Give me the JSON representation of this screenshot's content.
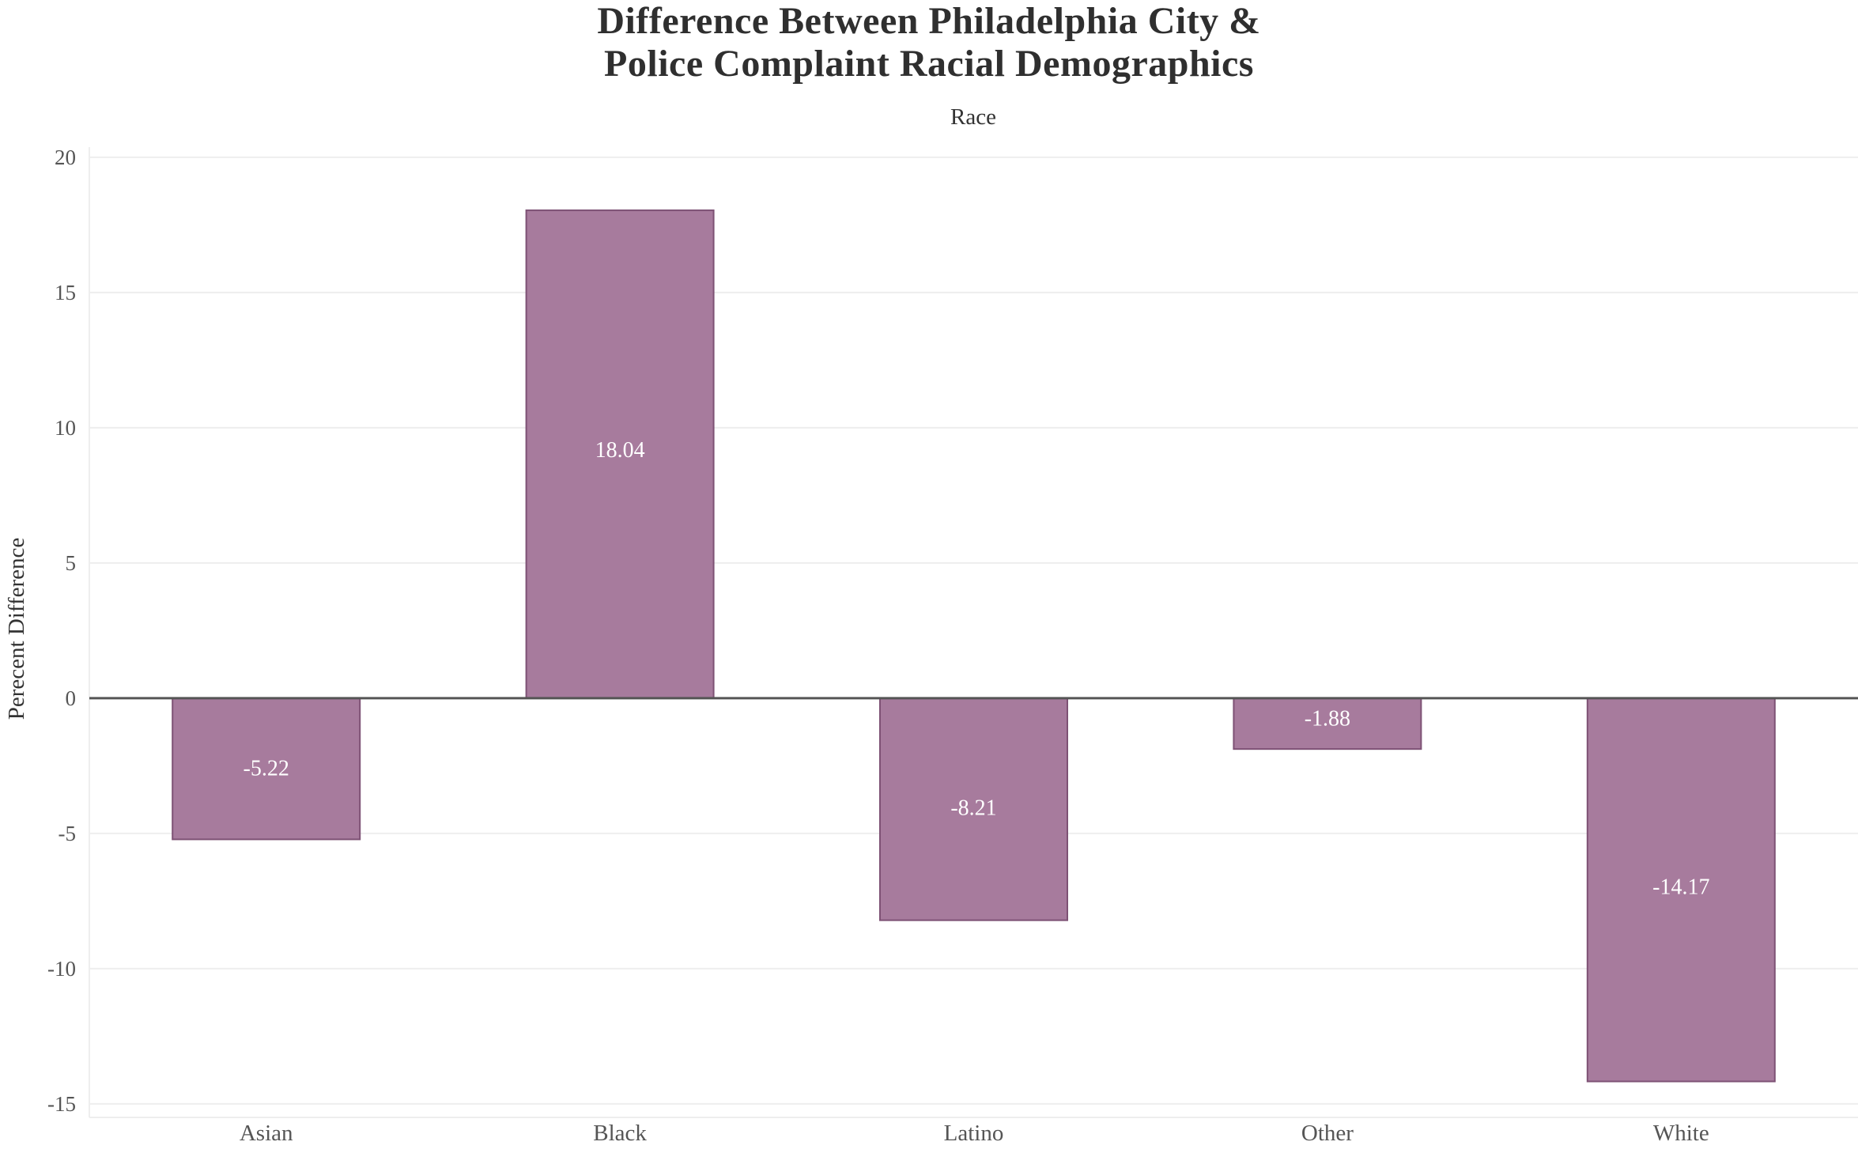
{
  "title_lines": [
    "Difference Between Philadelphia City &",
    "Police Complaint Racial Demographics"
  ],
  "chart_data": {
    "type": "bar",
    "title": "Difference Between Philadelphia City & Police Complaint Racial Demographics",
    "top_label": "Race",
    "xlabel": "",
    "ylabel": "Perecent Difference",
    "categories": [
      "Asian",
      "Black",
      "Latino",
      "Other",
      "White"
    ],
    "values": [
      -5.22,
      18.04,
      -8.21,
      -1.88,
      -14.17
    ],
    "data_labels": [
      "-5.22",
      "18.04",
      "-8.21",
      "-1.88",
      "-14.17"
    ],
    "ylim": [
      -15.5,
      20.2
    ],
    "yticks": [
      -15,
      -10,
      -5,
      0,
      5,
      10,
      15,
      20
    ],
    "grid": true,
    "legend": "none",
    "colors": {
      "bar_fill": "#a77b9d",
      "bar_stroke": "#7e5275",
      "zero_line": "#555555",
      "grid": "#eeeeee"
    }
  }
}
